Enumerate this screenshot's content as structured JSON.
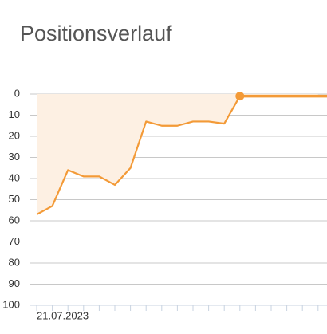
{
  "chart_data": {
    "type": "line",
    "title": "Positionsverlauf",
    "categories": [
      "21.07.2023",
      null,
      null,
      null,
      null,
      null,
      null,
      null,
      null,
      null,
      null,
      null,
      null,
      null,
      null,
      null,
      null,
      null,
      null
    ],
    "values": [
      57,
      53,
      36,
      39,
      39,
      43,
      35,
      13,
      15,
      15,
      13,
      13,
      14,
      1,
      1,
      1,
      1,
      1,
      1
    ],
    "color": "#f39a37",
    "area_color": "#fdf0e3",
    "ylim": [
      0,
      100
    ],
    "y_reversed": true,
    "yticks": [
      0,
      10,
      20,
      30,
      40,
      50,
      60,
      70,
      80,
      90,
      100
    ],
    "grid": true,
    "highlight_point": 13
  }
}
